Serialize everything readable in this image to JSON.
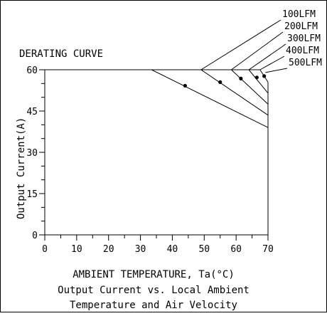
{
  "chart_data": {
    "type": "line",
    "title": "DERATING CURVE",
    "xlabel": "AMBIENT TEMPERATURE, Ta(°C)",
    "ylabel": "Output Current(A)",
    "caption_line1": "Output Current vs. Local Ambient",
    "caption_line2": "Temperature and Air Velocity",
    "xlim": [
      0,
      70
    ],
    "ylim": [
      0,
      60
    ],
    "x_ticks": [
      "0",
      "10",
      "20",
      "30",
      "40",
      "50",
      "60",
      "70"
    ],
    "x_tick_values": [
      0,
      10,
      20,
      30,
      40,
      50,
      60,
      70
    ],
    "y_ticks": [
      "0",
      "15",
      "30",
      "45",
      "60"
    ],
    "y_tick_values": [
      0,
      15,
      30,
      45,
      60
    ],
    "grid": false,
    "series": [
      {
        "name": "100LFM",
        "points": [
          [
            0,
            60
          ],
          [
            33.5,
            60
          ],
          [
            70,
            39
          ]
        ],
        "marker": [
          44,
          54.2
        ],
        "label_anchor": [
          49,
          60
        ]
      },
      {
        "name": "200LFM",
        "points": [
          [
            0,
            60
          ],
          [
            49,
            60
          ],
          [
            70,
            43.5
          ]
        ],
        "marker": [
          55,
          55.5
        ],
        "label_anchor": [
          58.5,
          60
        ]
      },
      {
        "name": "300LFM",
        "points": [
          [
            0,
            60
          ],
          [
            58.5,
            60
          ],
          [
            70,
            47.5
          ]
        ],
        "marker": [
          61.5,
          56.8
        ],
        "label_anchor": [
          64,
          60
        ]
      },
      {
        "name": "400LFM",
        "points": [
          [
            0,
            60
          ],
          [
            64,
            60
          ],
          [
            70,
            51.5
          ]
        ],
        "marker": [
          66.5,
          57.2
        ],
        "label_anchor": [
          67.5,
          60
        ]
      },
      {
        "name": "500LFM",
        "points": [
          [
            0,
            60
          ],
          [
            67.5,
            60
          ],
          [
            70,
            55.5
          ]
        ],
        "marker": [
          68.8,
          57.7
        ],
        "label_anchor": [
          69.2,
          59
        ]
      }
    ]
  }
}
